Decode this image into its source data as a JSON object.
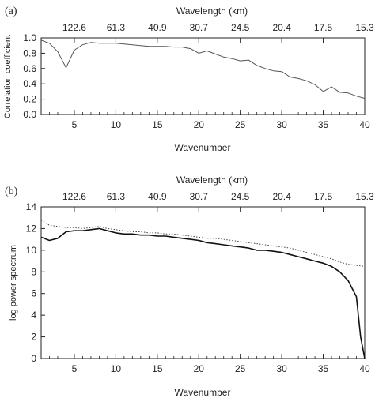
{
  "chart_data": [
    {
      "panel_label": "(a)",
      "type": "line",
      "top_axis_label": "Wavelength (km)",
      "top_ticks": [
        "122.6",
        "61.3",
        "40.9",
        "30.7",
        "24.5",
        "20.4",
        "17.5",
        "15.3"
      ],
      "xlabel": "Wavenumber",
      "ylabel": "Correlation coefficient",
      "xlim": [
        1,
        40
      ],
      "ylim": [
        0,
        1
      ],
      "xticks": [
        5,
        10,
        15,
        20,
        25,
        30,
        35,
        40
      ],
      "yticks": [
        "0.0",
        "0.2",
        "0.4",
        "0.6",
        "0.8",
        "1.0"
      ],
      "grid": false,
      "series": [
        {
          "color": "#555555",
          "x": [
            1,
            2,
            3,
            4,
            5,
            6,
            7,
            8,
            9,
            10,
            11,
            12,
            13,
            14,
            15,
            16,
            17,
            18,
            19,
            20,
            21,
            22,
            23,
            24,
            25,
            26,
            27,
            28,
            29,
            30,
            31,
            32,
            33,
            34,
            35,
            36,
            37,
            38,
            39,
            40
          ],
          "y": [
            0.97,
            0.93,
            0.82,
            0.61,
            0.84,
            0.91,
            0.94,
            0.93,
            0.93,
            0.93,
            0.92,
            0.91,
            0.9,
            0.89,
            0.89,
            0.89,
            0.88,
            0.88,
            0.86,
            0.8,
            0.83,
            0.79,
            0.75,
            0.73,
            0.7,
            0.71,
            0.64,
            0.6,
            0.57,
            0.56,
            0.49,
            0.47,
            0.44,
            0.39,
            0.3,
            0.36,
            0.29,
            0.28,
            0.24,
            0.21
          ]
        }
      ]
    },
    {
      "panel_label": "(b)",
      "type": "line",
      "top_axis_label": "Wavelength (km)",
      "top_ticks": [
        "122.6",
        "61.3",
        "40.9",
        "30.7",
        "24.5",
        "20.4",
        "17.5",
        "15.3"
      ],
      "xlabel": "Wavenumber",
      "ylabel": "log power spectrum",
      "xlim": [
        1,
        40
      ],
      "ylim": [
        0,
        14
      ],
      "xticks": [
        5,
        10,
        15,
        20,
        25,
        30,
        35,
        40
      ],
      "yticks": [
        "0",
        "2",
        "4",
        "6",
        "8",
        "10",
        "12",
        "14"
      ],
      "grid": false,
      "series": [
        {
          "style": "solid",
          "color": "#111111",
          "x": [
            1,
            2,
            3,
            4,
            5,
            6,
            7,
            8,
            9,
            10,
            11,
            12,
            13,
            14,
            15,
            16,
            17,
            18,
            19,
            20,
            21,
            22,
            23,
            24,
            25,
            26,
            27,
            28,
            29,
            30,
            31,
            32,
            33,
            34,
            35,
            36,
            37,
            38,
            39,
            39.5,
            40
          ],
          "y": [
            11.2,
            10.9,
            11.1,
            11.7,
            11.8,
            11.8,
            11.9,
            12.0,
            11.8,
            11.6,
            11.5,
            11.5,
            11.4,
            11.4,
            11.3,
            11.3,
            11.2,
            11.1,
            11.0,
            10.9,
            10.7,
            10.6,
            10.5,
            10.4,
            10.3,
            10.2,
            10.0,
            10.0,
            9.9,
            9.8,
            9.6,
            9.4,
            9.2,
            9.0,
            8.8,
            8.5,
            8.0,
            7.2,
            5.7,
            2.0,
            0.0
          ]
        },
        {
          "style": "dotted",
          "color": "#444444",
          "x": [
            1,
            2,
            3,
            4,
            5,
            6,
            7,
            8,
            9,
            10,
            11,
            12,
            13,
            14,
            15,
            16,
            17,
            18,
            19,
            20,
            21,
            22,
            23,
            24,
            25,
            26,
            27,
            28,
            29,
            30,
            31,
            32,
            33,
            34,
            35,
            36,
            37,
            38,
            39,
            40
          ],
          "y": [
            12.8,
            12.3,
            12.2,
            12.1,
            12.1,
            12.0,
            12.1,
            12.2,
            12.0,
            11.9,
            11.8,
            11.7,
            11.7,
            11.6,
            11.6,
            11.5,
            11.5,
            11.4,
            11.3,
            11.2,
            11.1,
            11.1,
            11.0,
            10.9,
            10.8,
            10.7,
            10.6,
            10.5,
            10.4,
            10.3,
            10.2,
            10.0,
            9.8,
            9.6,
            9.4,
            9.2,
            8.9,
            8.7,
            8.6,
            8.5
          ]
        }
      ]
    }
  ]
}
